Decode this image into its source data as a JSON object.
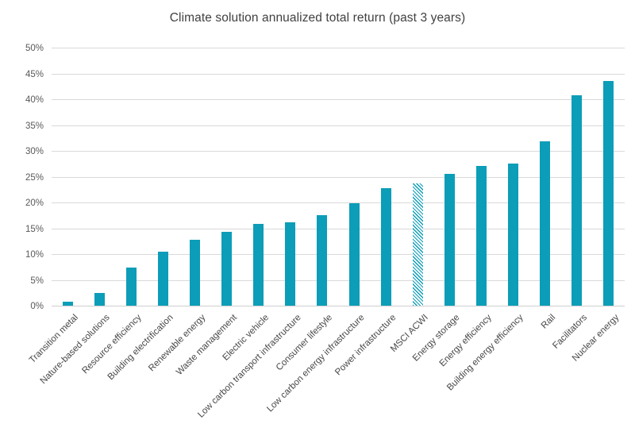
{
  "chart_data": {
    "type": "bar",
    "title": "Climate solution annualized total return (past 3 years)",
    "categories": [
      "Transition metal",
      "Nature-based solutions",
      "Resource efficiency",
      "Building electrification",
      "Renewable energy",
      "Waste management",
      "Electric vehicle",
      "Low carbon transport infrastructure",
      "Consumer lifestyle",
      "Low carbon energy infrastructure",
      "Power infrastructure",
      "MSCI ACWI",
      "Energy storage",
      "Energy efficiency",
      "Building energy efficiency",
      "Rail",
      "Facilitators",
      "Nuclear energy"
    ],
    "values": [
      0.8,
      2.4,
      7.4,
      10.4,
      12.7,
      14.3,
      15.8,
      16.1,
      17.5,
      19.9,
      22.8,
      23.7,
      25.6,
      27.1,
      27.5,
      31.9,
      40.8,
      43.5
    ],
    "value_unit": "%",
    "highlighted_category": "MSCI ACWI",
    "highlight_index": 11,
    "highlight_style": "diagonal-hatch",
    "xlabel": "",
    "ylabel": "",
    "ylim": [
      0,
      50
    ],
    "ytick_step": 5,
    "ytick_labels": [
      "0%",
      "5%",
      "10%",
      "15%",
      "20%",
      "25%",
      "30%",
      "35%",
      "40%",
      "45%",
      "50%"
    ],
    "grid": "horizontal",
    "legend": "none",
    "colors": {
      "bar": "#0c9db8",
      "gridline": "#d9d9d9",
      "axis_line": "#cfcfcf",
      "title_text": "#404040",
      "tick_text": "#595959",
      "background": "#ffffff"
    }
  }
}
